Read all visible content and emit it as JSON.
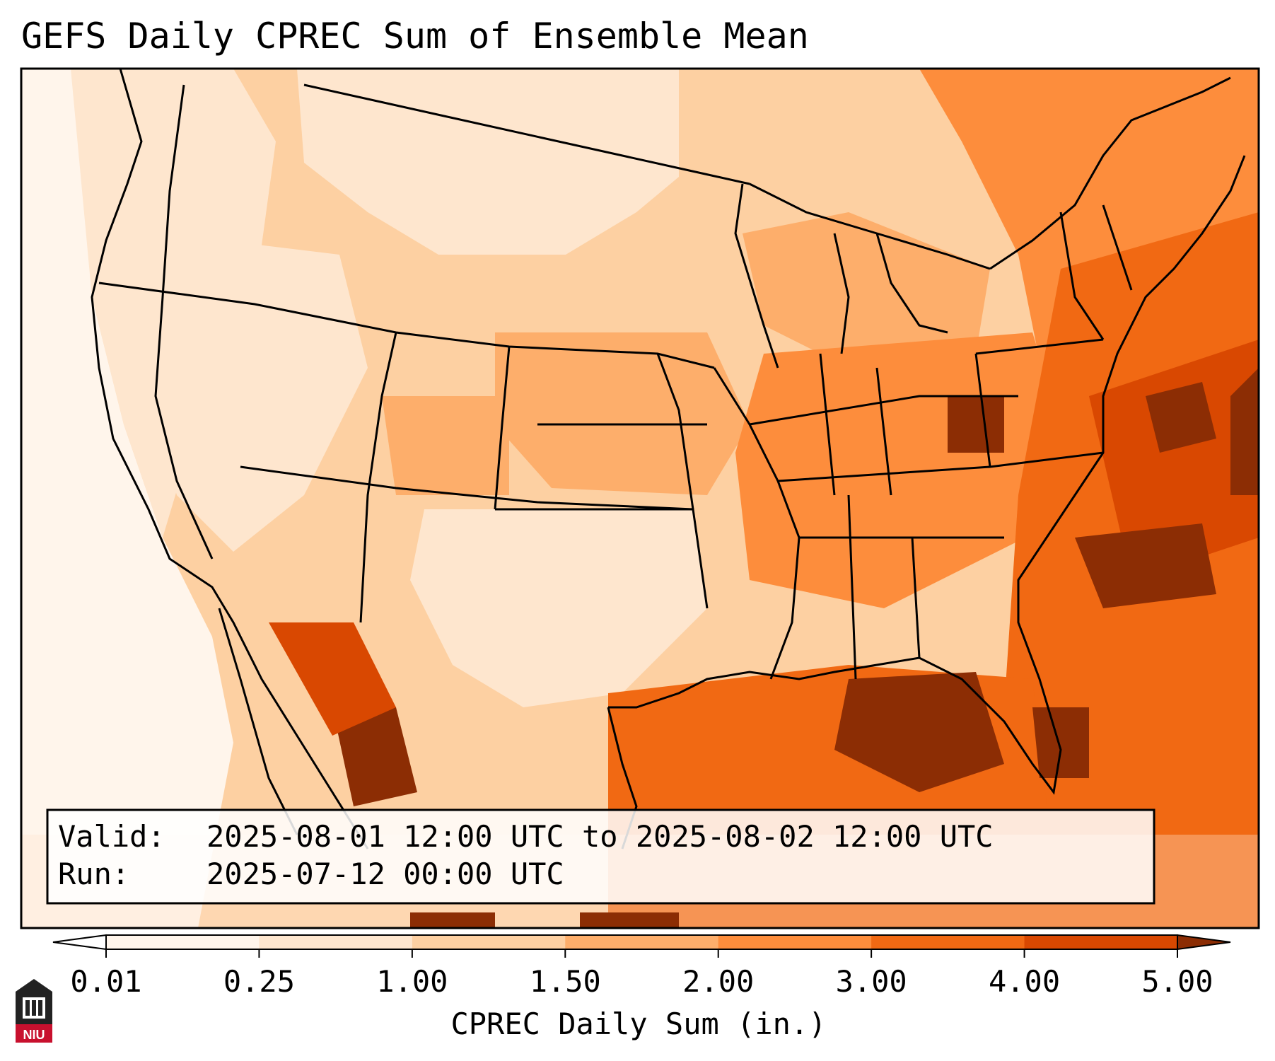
{
  "title": "GEFS Daily CPREC Sum of Ensemble Mean",
  "info": {
    "valid_label": "Valid:",
    "valid_value": "2025-08-01 12:00 UTC to 2025-08-02 12:00 UTC",
    "run_label": "Run:",
    "run_value": "2025-07-12 00:00 UTC"
  },
  "colorbar": {
    "label": "CPREC Daily Sum (in.)",
    "ticks": [
      "0.01",
      "0.25",
      "1.00",
      "1.50",
      "2.00",
      "3.00",
      "4.00",
      "5.00"
    ],
    "colors": [
      "#fff5eb",
      "#fee6ce",
      "#fdd0a2",
      "#fdae6b",
      "#fd8d3c",
      "#f16913",
      "#d94801",
      "#8c2d04"
    ],
    "extend_low_color": "#ffffff",
    "extend_high_color": "#8c2d04"
  },
  "logo": {
    "text": "NIU",
    "color": "#c8102e"
  }
}
